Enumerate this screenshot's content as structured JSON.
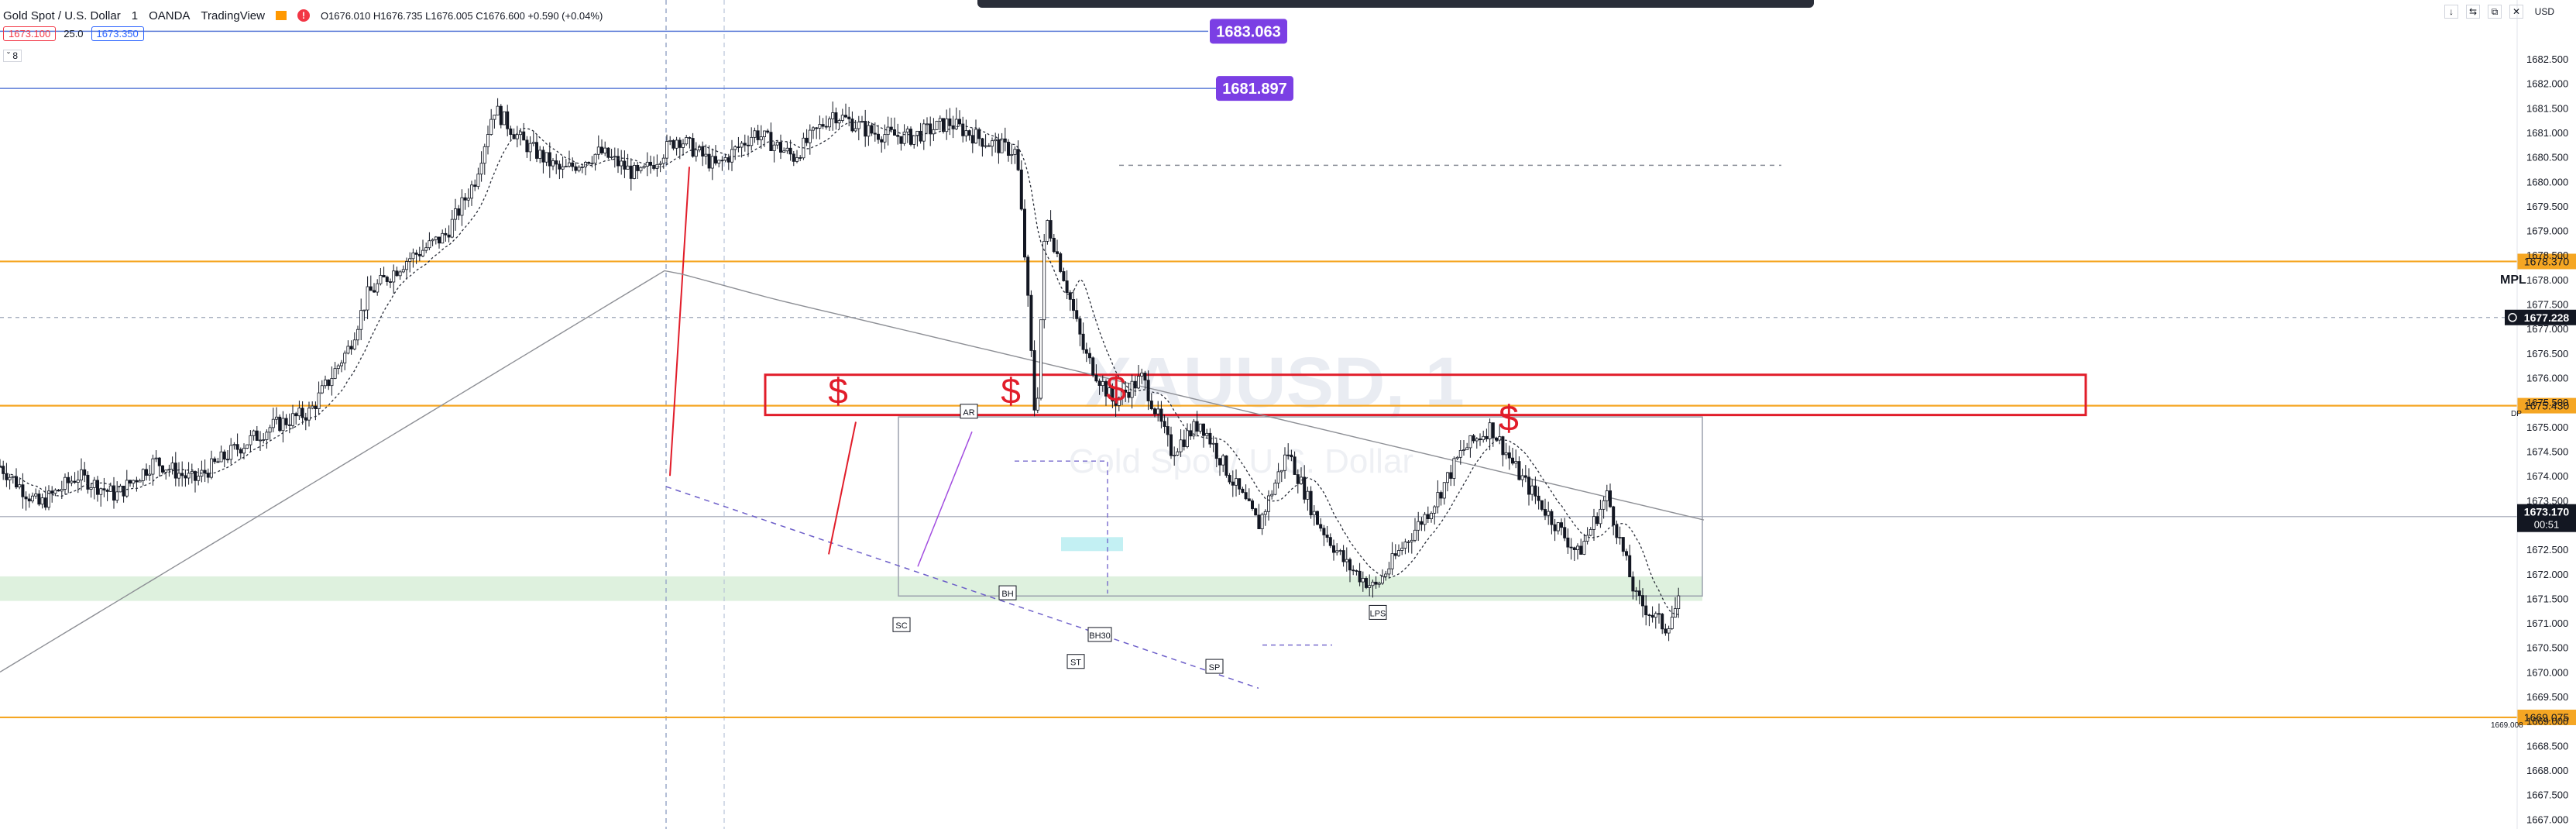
{
  "header": {
    "symbol": "Gold Spot / U.S. Dollar",
    "interval": "1",
    "broker": "OANDA",
    "platform": "TradingView",
    "ohlc": "O1676.010  H1676.735  L1676.005  C1676.600  +0.590 (+0.04%)",
    "bid": "1673.100",
    "spread": "25.0",
    "ask": "1673.350",
    "collapse": "ˇ  8"
  },
  "currency": "USD",
  "window_controls": [
    "↓",
    "⇆",
    "⧉",
    "✕"
  ],
  "chart_data": {
    "type": "candlestick",
    "ylim": [
      1666.8,
      1683.7
    ],
    "y_ticks": [
      1682.5,
      1682,
      1681.5,
      1681,
      1680.5,
      1680,
      1679.5,
      1679,
      1678.5,
      1678,
      1677.5,
      1677,
      1676.5,
      1676,
      1675.5,
      1675,
      1674.5,
      1674,
      1673.5,
      1673,
      1672.5,
      1672,
      1671.5,
      1671,
      1670.5,
      1670,
      1669.5,
      1669,
      1668.5,
      1668,
      1667.5,
      1667
    ],
    "y_tick_labels": [
      "1682.500",
      "1682.000",
      "1681.500",
      "1681.000",
      "1680.500",
      "1680.000",
      "1679.500",
      "1679.000",
      "1678.500",
      "1678.000",
      "1677.500",
      "1677.000",
      "1676.500",
      "1676.000",
      "1675.500",
      "1675.000",
      "1674.500",
      "1674.000",
      "1673.500",
      "1673.000",
      "1672.500",
      "1672.000",
      "1671.500",
      "1671.000",
      "1670.500",
      "1670.000",
      "1669.500",
      "1669.000",
      "1668.500",
      "1668.000",
      "1667.500",
      "1667.000"
    ],
    "price_path": [
      [
        0,
        1674.2
      ],
      [
        0.02,
        1673.4
      ],
      [
        0.04,
        1674.0
      ],
      [
        0.06,
        1673.6
      ],
      [
        0.08,
        1674.3
      ],
      [
        0.1,
        1673.9
      ],
      [
        0.12,
        1674.5
      ],
      [
        0.14,
        1675.0
      ],
      [
        0.16,
        1675.3
      ],
      [
        0.18,
        1676.6
      ],
      [
        0.19,
        1677.7
      ],
      [
        0.21,
        1678.4
      ],
      [
        0.23,
        1678.9
      ],
      [
        0.245,
        1680.0
      ],
      [
        0.255,
        1681.5
      ],
      [
        0.27,
        1680.8
      ],
      [
        0.29,
        1680.2
      ],
      [
        0.31,
        1680.6
      ],
      [
        0.33,
        1680.1
      ],
      [
        0.35,
        1680.9
      ],
      [
        0.37,
        1680.3
      ],
      [
        0.39,
        1681.0
      ],
      [
        0.41,
        1680.5
      ],
      [
        0.43,
        1681.4
      ],
      [
        0.45,
        1681.0
      ],
      [
        0.47,
        1680.9
      ],
      [
        0.49,
        1681.2
      ],
      [
        0.51,
        1680.8
      ],
      [
        0.525,
        1680.6
      ],
      [
        0.53,
        1678.1
      ],
      [
        0.535,
        1674.9
      ],
      [
        0.54,
        1679.3
      ],
      [
        0.55,
        1678.0
      ],
      [
        0.56,
        1676.5
      ],
      [
        0.575,
        1675.5
      ],
      [
        0.59,
        1676.0
      ],
      [
        0.605,
        1674.5
      ],
      [
        0.62,
        1675.1
      ],
      [
        0.635,
        1674.0
      ],
      [
        0.65,
        1673.0
      ],
      [
        0.665,
        1674.5
      ],
      [
        0.68,
        1673.1
      ],
      [
        0.695,
        1672.2
      ],
      [
        0.71,
        1671.7
      ],
      [
        0.725,
        1672.6
      ],
      [
        0.74,
        1673.4
      ],
      [
        0.755,
        1674.5
      ],
      [
        0.77,
        1675.0
      ],
      [
        0.785,
        1674.0
      ],
      [
        0.8,
        1673.2
      ],
      [
        0.815,
        1672.4
      ],
      [
        0.83,
        1673.6
      ],
      [
        0.845,
        1671.5
      ],
      [
        0.86,
        1670.9
      ],
      [
        0.875,
        1672.0
      ],
      [
        0.885,
        1675.0
      ],
      [
        0.895,
        1673.6
      ],
      [
        0.91,
        1672.9
      ],
      [
        0.925,
        1673.3
      ],
      [
        0.94,
        1672.6
      ],
      [
        0.955,
        1672.0
      ],
      [
        0.965,
        1671.3
      ],
      [
        0.975,
        1670.6
      ],
      [
        0.99,
        1671.0
      ],
      [
        1.005,
        1671.4
      ],
      [
        1.015,
        1670.6
      ],
      [
        1.03,
        1671.6
      ],
      [
        1.045,
        1673.0
      ],
      [
        1.055,
        1672.8
      ],
      [
        1.07,
        1671.5
      ],
      [
        1.08,
        1671.8
      ],
      [
        1.095,
        1672.2
      ],
      [
        1.105,
        1673.2
      ],
      [
        1.12,
        1673.0
      ],
      [
        1.135,
        1674.0
      ],
      [
        1.15,
        1674.7
      ],
      [
        1.165,
        1674.4
      ],
      [
        1.18,
        1674.0
      ],
      [
        1.195,
        1673.6
      ],
      [
        1.21,
        1673.0
      ],
      [
        1.225,
        1672.8
      ],
      [
        1.24,
        1671.5
      ],
      [
        1.255,
        1672.3
      ],
      [
        1.27,
        1672.6
      ],
      [
        1.285,
        1673.0
      ],
      [
        1.3,
        1673.2
      ],
      [
        1.315,
        1673.1
      ],
      [
        1.325,
        1673.17
      ]
    ],
    "horizontal_levels": [
      {
        "price": 1683.063,
        "label": "1683.063",
        "color": "#7b3fe4"
      },
      {
        "price": 1681.897,
        "label": "1681.897",
        "color": "#7b3fe4"
      },
      {
        "price": 1678.37,
        "label": "1678.370",
        "color": "#f5a623"
      },
      {
        "price": 1675.43,
        "label": "1675.430",
        "color": "#f5a623"
      },
      {
        "price": 1669.075,
        "label": "1669.075",
        "color": "#f5a623"
      }
    ],
    "current_price": {
      "price": 1673.17,
      "label": "1673.170",
      "countdown": "00:51"
    },
    "crosshair_price": {
      "price": 1677.228,
      "label": "1677.228"
    },
    "side_text": [
      {
        "text": "MPL",
        "price": 1678.0
      },
      {
        "text": "DP",
        "price": 1675.3
      },
      {
        "text": "1669.008",
        "price": 1668.95
      }
    ],
    "annotations": [
      "AR",
      "BH",
      "SC",
      "ST",
      "BH30",
      "SP",
      "LPS",
      "$",
      "$",
      "$",
      "$"
    ],
    "watermark": {
      "symbol": "XAUUSD, 1",
      "name": "Gold Spot / U.S. Dollar"
    }
  }
}
